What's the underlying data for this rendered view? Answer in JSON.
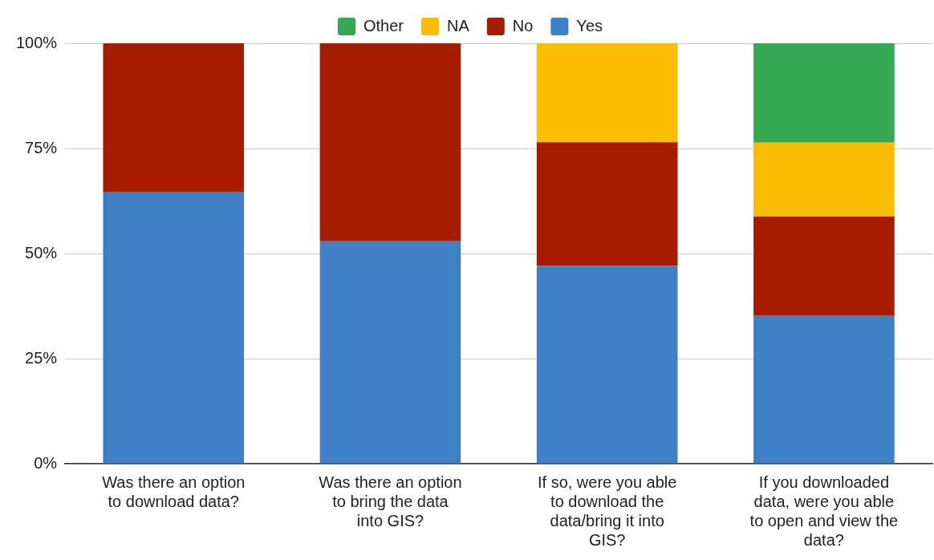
{
  "chart_data": {
    "type": "bar",
    "stacked": true,
    "legend": "top",
    "grid": "y",
    "categories": [
      "Was there an option to download data?",
      "Was there an option to bring the data into GIS?",
      "If so, were you able to download the data/bring it into GIS?",
      "If you downloaded data, were you able to open and view the data?"
    ],
    "series": [
      {
        "name": "Yes",
        "color": "#3d81c4",
        "values": [
          64.7,
          52.9,
          47.1,
          35.3
        ]
      },
      {
        "name": "No",
        "color": "#a61c00",
        "values": [
          35.3,
          47.1,
          29.4,
          23.5
        ]
      },
      {
        "name": "NA",
        "color": "#fbbc04",
        "values": [
          null,
          null,
          23.5,
          17.6
        ]
      },
      {
        "name": "Other",
        "color": "#34a853",
        "values": [
          null,
          null,
          null,
          23.6
        ]
      }
    ],
    "ylim": [
      0,
      100
    ],
    "yticks": [
      {
        "value": 0,
        "label": "0%"
      },
      {
        "value": 25,
        "label": "25%"
      },
      {
        "value": 50,
        "label": "50%"
      },
      {
        "value": 75,
        "label": "75%"
      },
      {
        "value": 100,
        "label": "100%"
      }
    ]
  }
}
